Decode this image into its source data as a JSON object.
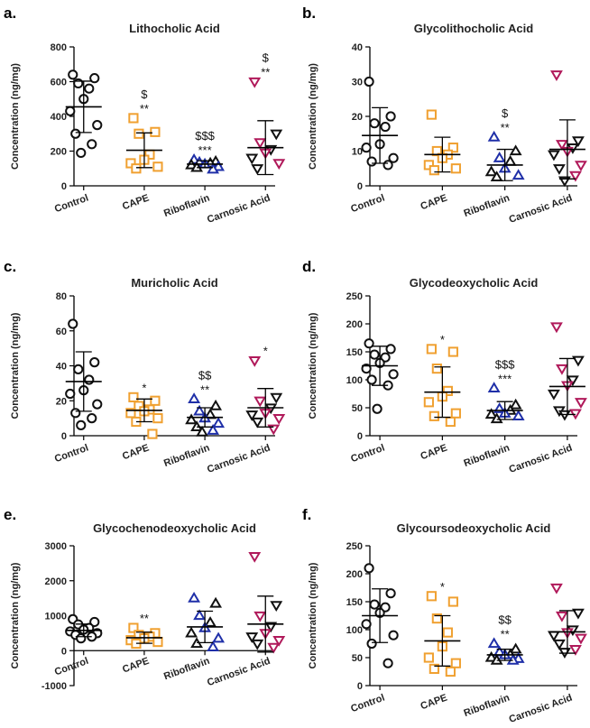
{
  "colors": {
    "Control": "#111111",
    "CAPE": "#f0a030",
    "Riboflavin": "#1f2fa8",
    "Carnosic Acid": "#b0195a",
    "Riboflavin_secondary": "#111111",
    "Carnosic Acid_secondary": "#111111"
  },
  "markers": {
    "Control": "circle",
    "CAPE": "square",
    "Riboflavin": "triangle-up",
    "Carnosic Acid": "triangle-down"
  },
  "chart_data": [
    {
      "panel": "a.",
      "type": "scatter",
      "title": "Lithocholic Acid",
      "ylabel": "Concentration (ng/mg)",
      "categories": [
        "Control",
        "CAPE",
        "Riboflavin",
        "Carnosic Acid"
      ],
      "yticks": [
        "0",
        "200",
        "400",
        "600",
        "800"
      ],
      "ylim": [
        0,
        800
      ],
      "groups": [
        {
          "points": [
            640,
            620,
            590,
            560,
            500,
            430,
            350,
            300,
            240,
            190
          ],
          "mean": 455,
          "sd": 148,
          "annot": []
        },
        {
          "points": [
            390,
            310,
            300,
            180,
            150,
            130,
            110,
            100
          ],
          "mean": 205,
          "sd": 100,
          "annot": [
            "$",
            "**"
          ]
        },
        {
          "points": [
            150,
            140,
            135,
            130,
            125,
            120,
            110,
            105,
            95
          ],
          "mean": 125,
          "sd": 20,
          "annot": [
            "$$$",
            "***"
          ]
        },
        {
          "points": [
            600,
            300,
            250,
            210,
            190,
            160,
            130,
            100
          ],
          "mean": 220,
          "sd": 155,
          "annot": [
            "$",
            "**"
          ]
        }
      ]
    },
    {
      "panel": "b.",
      "type": "scatter",
      "title": "Glycolithocholic Acid",
      "ylabel": "Concentration (ng/mg)",
      "categories": [
        "Control",
        "CAPE",
        "Riboflavin",
        "Carnosic Acid"
      ],
      "yticks": [
        "0",
        "10",
        "20",
        "30",
        "40"
      ],
      "ylim": [
        0,
        40
      ],
      "groups": [
        {
          "points": [
            30,
            20,
            18,
            17,
            12,
            11,
            8,
            7,
            6
          ],
          "mean": 14.5,
          "sd": 8,
          "annot": []
        },
        {
          "points": [
            20.5,
            11,
            10,
            9,
            8,
            6,
            5,
            4.5
          ],
          "mean": 9,
          "sd": 5,
          "annot": []
        },
        {
          "points": [
            14,
            10,
            8,
            7,
            5,
            4,
            3,
            2.5
          ],
          "mean": 6,
          "sd": 4.5,
          "annot": [
            "$",
            "**"
          ]
        },
        {
          "points": [
            32,
            13,
            12,
            11,
            10,
            9,
            6,
            5,
            3,
            1.5
          ],
          "mean": 10.5,
          "sd": 8.5,
          "annot": []
        }
      ]
    },
    {
      "panel": "c.",
      "type": "scatter",
      "title": "Muricholic Acid",
      "ylabel": "Concentration (ng/mg)",
      "categories": [
        "Control",
        "CAPE",
        "Riboflavin",
        "Carnosic Acid"
      ],
      "yticks": [
        "0",
        "20",
        "40",
        "60",
        "80"
      ],
      "ylim": [
        0,
        80
      ],
      "groups": [
        {
          "points": [
            64,
            42,
            38,
            32,
            26,
            24,
            18,
            13,
            10,
            6
          ],
          "mean": 31,
          "sd": 17,
          "annot": []
        },
        {
          "points": [
            22,
            20,
            17,
            15,
            14,
            13,
            10,
            8,
            1
          ],
          "mean": 14.5,
          "sd": 6.5,
          "annot": [
            "*"
          ]
        },
        {
          "points": [
            21,
            17,
            14,
            12,
            10,
            9,
            7,
            5,
            3,
            2
          ],
          "mean": 10.5,
          "sd": 5.5,
          "annot": [
            "$$",
            "**"
          ]
        },
        {
          "points": [
            43,
            22,
            20,
            16,
            13,
            12,
            10,
            8,
            4
          ],
          "mean": 16,
          "sd": 11,
          "annot": [
            "*"
          ]
        }
      ]
    },
    {
      "panel": "d.",
      "type": "scatter",
      "title": "Glycodeoxycholic Acid",
      "ylabel": "Concentration (ng/mg)",
      "categories": [
        "Control",
        "CAPE",
        "Riboflavin",
        "Carnosic Acid"
      ],
      "yticks": [
        "0",
        "50",
        "100",
        "150",
        "200",
        "250"
      ],
      "ylim": [
        0,
        250
      ],
      "groups": [
        {
          "points": [
            165,
            155,
            145,
            140,
            130,
            120,
            110,
            100,
            90,
            48
          ],
          "mean": 125,
          "sd": 35,
          "annot": []
        },
        {
          "points": [
            155,
            150,
            120,
            80,
            70,
            60,
            40,
            35,
            25
          ],
          "mean": 78,
          "sd": 45,
          "annot": [
            "*"
          ]
        },
        {
          "points": [
            85,
            55,
            48,
            45,
            40,
            38,
            35,
            30
          ],
          "mean": 45,
          "sd": 16,
          "annot": [
            "$$$",
            "***"
          ]
        },
        {
          "points": [
            195,
            135,
            120,
            100,
            90,
            75,
            60,
            45,
            40,
            38
          ],
          "mean": 88,
          "sd": 50,
          "annot": []
        }
      ]
    },
    {
      "panel": "e.",
      "type": "scatter",
      "title": "Glycochenodeoxycholic Acid",
      "ylabel": "Concentration (ng/mg)",
      "categories": [
        "Control",
        "CAPE",
        "Riboflavin",
        "Carnosic Acid"
      ],
      "yticks": [
        "-1000",
        "0",
        "1000",
        "2000",
        "3000"
      ],
      "ylim": [
        -1000,
        3000
      ],
      "groups": [
        {
          "points": [
            900,
            820,
            750,
            650,
            600,
            550,
            500,
            450,
            400,
            350
          ],
          "mean": 580,
          "sd": 180,
          "annot": []
        },
        {
          "points": [
            650,
            500,
            450,
            400,
            350,
            300,
            250,
            200
          ],
          "mean": 370,
          "sd": 160,
          "annot": [
            "**"
          ]
        },
        {
          "points": [
            1500,
            1350,
            1000,
            800,
            650,
            500,
            350,
            200,
            100
          ],
          "mean": 680,
          "sd": 450,
          "annot": []
        },
        {
          "points": [
            2700,
            1300,
            1000,
            700,
            500,
            400,
            300,
            200,
            100
          ],
          "mean": 760,
          "sd": 800,
          "annot": []
        }
      ]
    },
    {
      "panel": "f.",
      "type": "scatter",
      "title": "Glycoursodeoxycholic Acid",
      "ylabel": "Concentration (ng/mg)",
      "categories": [
        "Control",
        "CAPE",
        "Riboflavin",
        "Carnosic Acid"
      ],
      "yticks": [
        "0",
        "50",
        "100",
        "150",
        "200",
        "250"
      ],
      "ylim": [
        0,
        250
      ],
      "groups": [
        {
          "points": [
            210,
            165,
            145,
            140,
            130,
            110,
            90,
            75,
            40
          ],
          "mean": 125,
          "sd": 48,
          "annot": []
        },
        {
          "points": [
            160,
            150,
            120,
            95,
            70,
            50,
            40,
            30,
            25
          ],
          "mean": 80,
          "sd": 45,
          "annot": [
            "*"
          ]
        },
        {
          "points": [
            75,
            65,
            60,
            55,
            55,
            50,
            48,
            45,
            45
          ],
          "mean": 55,
          "sd": 10,
          "annot": [
            "$$",
            "**"
          ]
        },
        {
          "points": [
            175,
            130,
            125,
            100,
            95,
            90,
            85,
            75,
            65,
            60
          ],
          "mean": 96,
          "sd": 38,
          "annot": []
        }
      ]
    }
  ]
}
